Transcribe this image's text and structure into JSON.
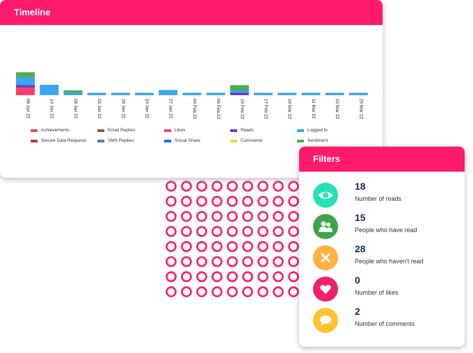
{
  "timeline": {
    "title": "Timeline",
    "legend": [
      {
        "label": "Achievements",
        "color": "#e94b5a"
      },
      {
        "label": "Email Replies",
        "color": "#8b5a4a"
      },
      {
        "label": "Likes",
        "color": "#ff3d6e"
      },
      {
        "label": "Reads",
        "color": "#6a3fc2"
      },
      {
        "label": "Logged In",
        "color": "#3aa7f0"
      },
      {
        "label": "Secure Data Requests",
        "color": "#c0392b"
      },
      {
        "label": "SMS Replies",
        "color": "#5a7f9a"
      },
      {
        "label": "Social Share",
        "color": "#1e6fd9"
      },
      {
        "label": "Comments",
        "color": "#f6d23a"
      },
      {
        "label": "Sentiment",
        "color": "#4caf50"
      }
    ]
  },
  "chart_data": {
    "type": "bar",
    "stacked": true,
    "categories": [
      "08 Jan 22",
      "14 Jan 22",
      "18 Jan 22",
      "19 Jan 22",
      "20 Jan 22",
      "24 Jan 22",
      "27 Jan 22",
      "04 Feb 22",
      "09 Feb 22",
      "10 Feb 22",
      "17 Feb 22",
      "10 Mar 22",
      "11 Mar 22",
      "15 Mar 22",
      "29 Mar 22"
    ],
    "series": [
      {
        "name": "Likes",
        "values": [
          22,
          0,
          0,
          0,
          0,
          0,
          0,
          0,
          0,
          0,
          0,
          0,
          0,
          0,
          0
        ]
      },
      {
        "name": "Reads",
        "values": [
          7,
          0,
          0,
          0,
          0,
          0,
          0,
          0,
          0,
          7,
          0,
          0,
          0,
          0,
          0
        ]
      },
      {
        "name": "Logged In",
        "values": [
          22,
          30,
          7,
          7,
          7,
          7,
          15,
          7,
          7,
          7,
          7,
          7,
          7,
          7,
          7
        ]
      },
      {
        "name": "Sentiment",
        "values": [
          15,
          0,
          7,
          0,
          0,
          0,
          0,
          0,
          0,
          15,
          0,
          0,
          0,
          0,
          0
        ]
      }
    ],
    "xlabel": "",
    "ylabel": "",
    "grid": false,
    "legend_position": "bottom"
  },
  "filters": {
    "title": "Filters",
    "items": [
      {
        "value": "18",
        "label": "Number of reads",
        "color": "#26e0b8",
        "icon": "eye-icon"
      },
      {
        "value": "15",
        "label": "People who have read",
        "color": "#3ea34a",
        "icon": "people-icon"
      },
      {
        "value": "28",
        "label": "People who haven't read",
        "color": "#ffb240",
        "icon": "close-icon"
      },
      {
        "value": "0",
        "label": "Number of likes",
        "color": "#ee2367",
        "icon": "heart-icon"
      },
      {
        "value": "2",
        "label": "Number of comments",
        "color": "#ffc430",
        "icon": "comment-icon"
      }
    ]
  }
}
